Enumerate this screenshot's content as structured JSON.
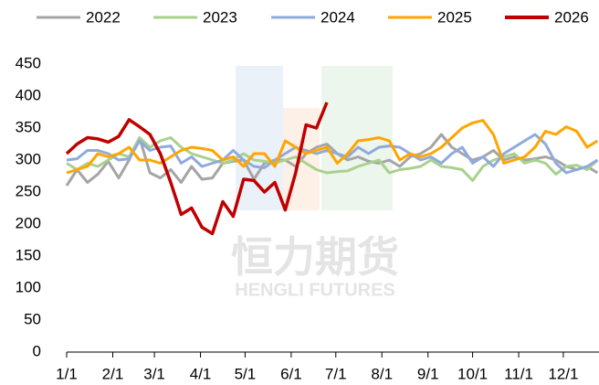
{
  "chart_data": {
    "type": "line",
    "watermark": [
      "恒力期货",
      "HENGLI FUTURES"
    ],
    "x": [
      0,
      7,
      14,
      21,
      28,
      35,
      42,
      49,
      56,
      63,
      70,
      77,
      84,
      91,
      98,
      105,
      112,
      119,
      126,
      133,
      140,
      147,
      154,
      161,
      168,
      175,
      182,
      189,
      196,
      203,
      210,
      217,
      224,
      231,
      238,
      245,
      252,
      259,
      266,
      273,
      280,
      287,
      294,
      301,
      308,
      315,
      322,
      329,
      336,
      343,
      350,
      357
    ],
    "xlim": [
      0,
      358
    ],
    "xticks": [
      {
        "value": 0,
        "label": "1/1"
      },
      {
        "value": 31,
        "label": "2/1"
      },
      {
        "value": 59,
        "label": "3/1"
      },
      {
        "value": 90,
        "label": "4/1"
      },
      {
        "value": 120,
        "label": "5/1"
      },
      {
        "value": 151,
        "label": "6/1"
      },
      {
        "value": 181,
        "label": "7/1"
      },
      {
        "value": 212,
        "label": "8/1"
      },
      {
        "value": 243,
        "label": "9/1"
      },
      {
        "value": 273,
        "label": "10/1"
      },
      {
        "value": 304,
        "label": "11/1"
      },
      {
        "value": 334,
        "label": "12/1"
      }
    ],
    "ylim": [
      0,
      450
    ],
    "yticks": [
      0,
      50,
      100,
      150,
      200,
      250,
      300,
      350,
      400,
      450
    ],
    "legend": "top",
    "series": [
      {
        "name": "2022",
        "color": "#a5a5a5",
        "values": [
          260,
          285,
          265,
          278,
          298,
          272,
          300,
          335,
          280,
          272,
          285,
          265,
          290,
          270,
          272,
          295,
          298,
          300,
          270,
          295,
          300,
          300,
          290,
          310,
          320,
          325,
          310,
          300,
          305,
          298,
          295,
          300,
          290,
          305,
          310,
          320,
          340,
          320,
          310,
          300,
          305,
          315,
          300,
          305,
          300,
          302,
          305,
          300,
          290,
          285,
          290,
          280
        ]
      },
      {
        "name": "2023",
        "color": "#a9d18e",
        "values": [
          295,
          285,
          295,
          290,
          300,
          310,
          305,
          335,
          320,
          330,
          335,
          320,
          310,
          305,
          300,
          295,
          300,
          310,
          300,
          298,
          295,
          300,
          305,
          295,
          285,
          280,
          282,
          283,
          290,
          295,
          300,
          280,
          285,
          287,
          290,
          300,
          290,
          288,
          285,
          268,
          290,
          300,
          305,
          310,
          295,
          300,
          295,
          278,
          290,
          292,
          285,
          300
        ]
      },
      {
        "name": "2024",
        "color": "#8faadc",
        "values": [
          300,
          302,
          315,
          315,
          310,
          300,
          302,
          330,
          315,
          320,
          322,
          295,
          305,
          290,
          295,
          300,
          315,
          300,
          290,
          288,
          300,
          310,
          320,
          315,
          310,
          315,
          310,
          305,
          320,
          310,
          320,
          322,
          320,
          310,
          300,
          305,
          295,
          310,
          320,
          295,
          305,
          290,
          310,
          320,
          330,
          340,
          325,
          295,
          280,
          285,
          290,
          300
        ]
      },
      {
        "name": "2025",
        "color": "#ffa500",
        "values": [
          280,
          285,
          290,
          310,
          305,
          310,
          320,
          300,
          300,
          295,
          305,
          315,
          320,
          318,
          315,
          300,
          305,
          290,
          310,
          310,
          290,
          330,
          320,
          310,
          315,
          320,
          295,
          310,
          330,
          332,
          335,
          330,
          300,
          310,
          305,
          310,
          320,
          335,
          350,
          358,
          362,
          340,
          295,
          300,
          305,
          320,
          345,
          340,
          352,
          345,
          320,
          330
        ]
      },
      {
        "name": "2026",
        "color": "#c00000",
        "values": [
          310,
          325,
          335,
          333,
          328,
          337,
          363,
          352,
          340,
          310,
          265,
          215,
          225,
          195,
          185,
          235,
          212,
          270,
          268,
          250,
          265,
          222,
          280,
          355,
          350,
          390,
          null,
          null,
          null,
          null,
          null,
          null,
          null,
          null,
          null,
          null,
          null,
          null,
          null,
          null,
          null,
          null,
          null,
          null,
          null,
          null,
          null,
          null,
          null,
          null,
          null,
          null
        ]
      }
    ]
  }
}
